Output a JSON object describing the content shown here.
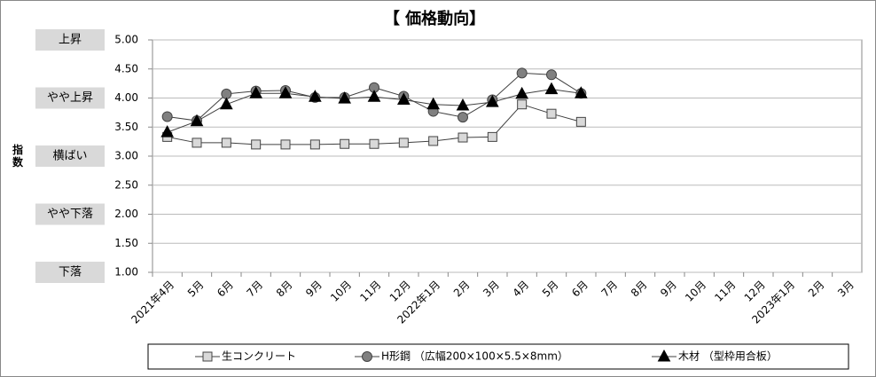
{
  "chart_data": {
    "type": "line",
    "title": "【 価格動向】",
    "y_label": "指数",
    "categories": [
      "2021年4月",
      "5月",
      "6月",
      "7月",
      "8月",
      "9月",
      "10月",
      "11月",
      "12月",
      "2022年1月",
      "2月",
      "3月",
      "4月",
      "5月",
      "6月",
      "7月",
      "8月",
      "9月",
      "10月",
      "11月",
      "12月",
      "2023年1月",
      "2月",
      "3月"
    ],
    "series": [
      {
        "name": "生コンクリート",
        "color": "#d9d9d9",
        "marker": "square",
        "values": [
          3.33,
          3.23,
          3.23,
          3.2,
          3.2,
          3.2,
          3.21,
          3.21,
          3.23,
          3.26,
          3.32,
          3.33,
          3.89,
          3.73,
          3.59,
          null,
          null,
          null,
          null,
          null,
          null,
          null,
          null,
          null
        ]
      },
      {
        "name": "H形鋼 （広幅200×100×5.5×8mm）",
        "color": "#808080",
        "marker": "circle",
        "values": [
          3.68,
          3.61,
          4.07,
          4.12,
          4.13,
          4.01,
          4.01,
          4.18,
          4.03,
          3.77,
          3.67,
          3.97,
          4.43,
          4.4,
          4.08,
          null,
          null,
          null,
          null,
          null,
          null,
          null,
          null,
          null
        ]
      },
      {
        "name": "木材 （型枠用合板）",
        "color": "#000000",
        "marker": "triangle",
        "values": [
          3.41,
          3.6,
          3.89,
          4.08,
          4.08,
          4.02,
          3.99,
          4.02,
          3.97,
          3.89,
          3.87,
          3.93,
          4.07,
          4.15,
          4.08,
          null,
          null,
          null,
          null,
          null,
          null,
          null,
          null,
          null
        ]
      }
    ],
    "ylim": [
      1,
      5
    ],
    "yticks": [
      {
        "value": 1,
        "label": "1.00"
      },
      {
        "value": 1.5,
        "label": "1.50"
      },
      {
        "value": 2,
        "label": "2.00"
      },
      {
        "value": 2.5,
        "label": "2.50"
      },
      {
        "value": 3,
        "label": "3.00"
      },
      {
        "value": 3.5,
        "label": "3.50"
      },
      {
        "value": 4,
        "label": "4.00"
      },
      {
        "value": 4.5,
        "label": "4.50"
      },
      {
        "value": 5,
        "label": "5.00"
      }
    ],
    "y_levels": [
      {
        "value": 5,
        "label": "上昇"
      },
      {
        "value": 4,
        "label": "やや上昇"
      },
      {
        "value": 3,
        "label": "横ばい"
      },
      {
        "value": 2,
        "label": "やや下落"
      },
      {
        "value": 1,
        "label": "下落"
      }
    ],
    "grid": true,
    "legend": "bottom"
  }
}
